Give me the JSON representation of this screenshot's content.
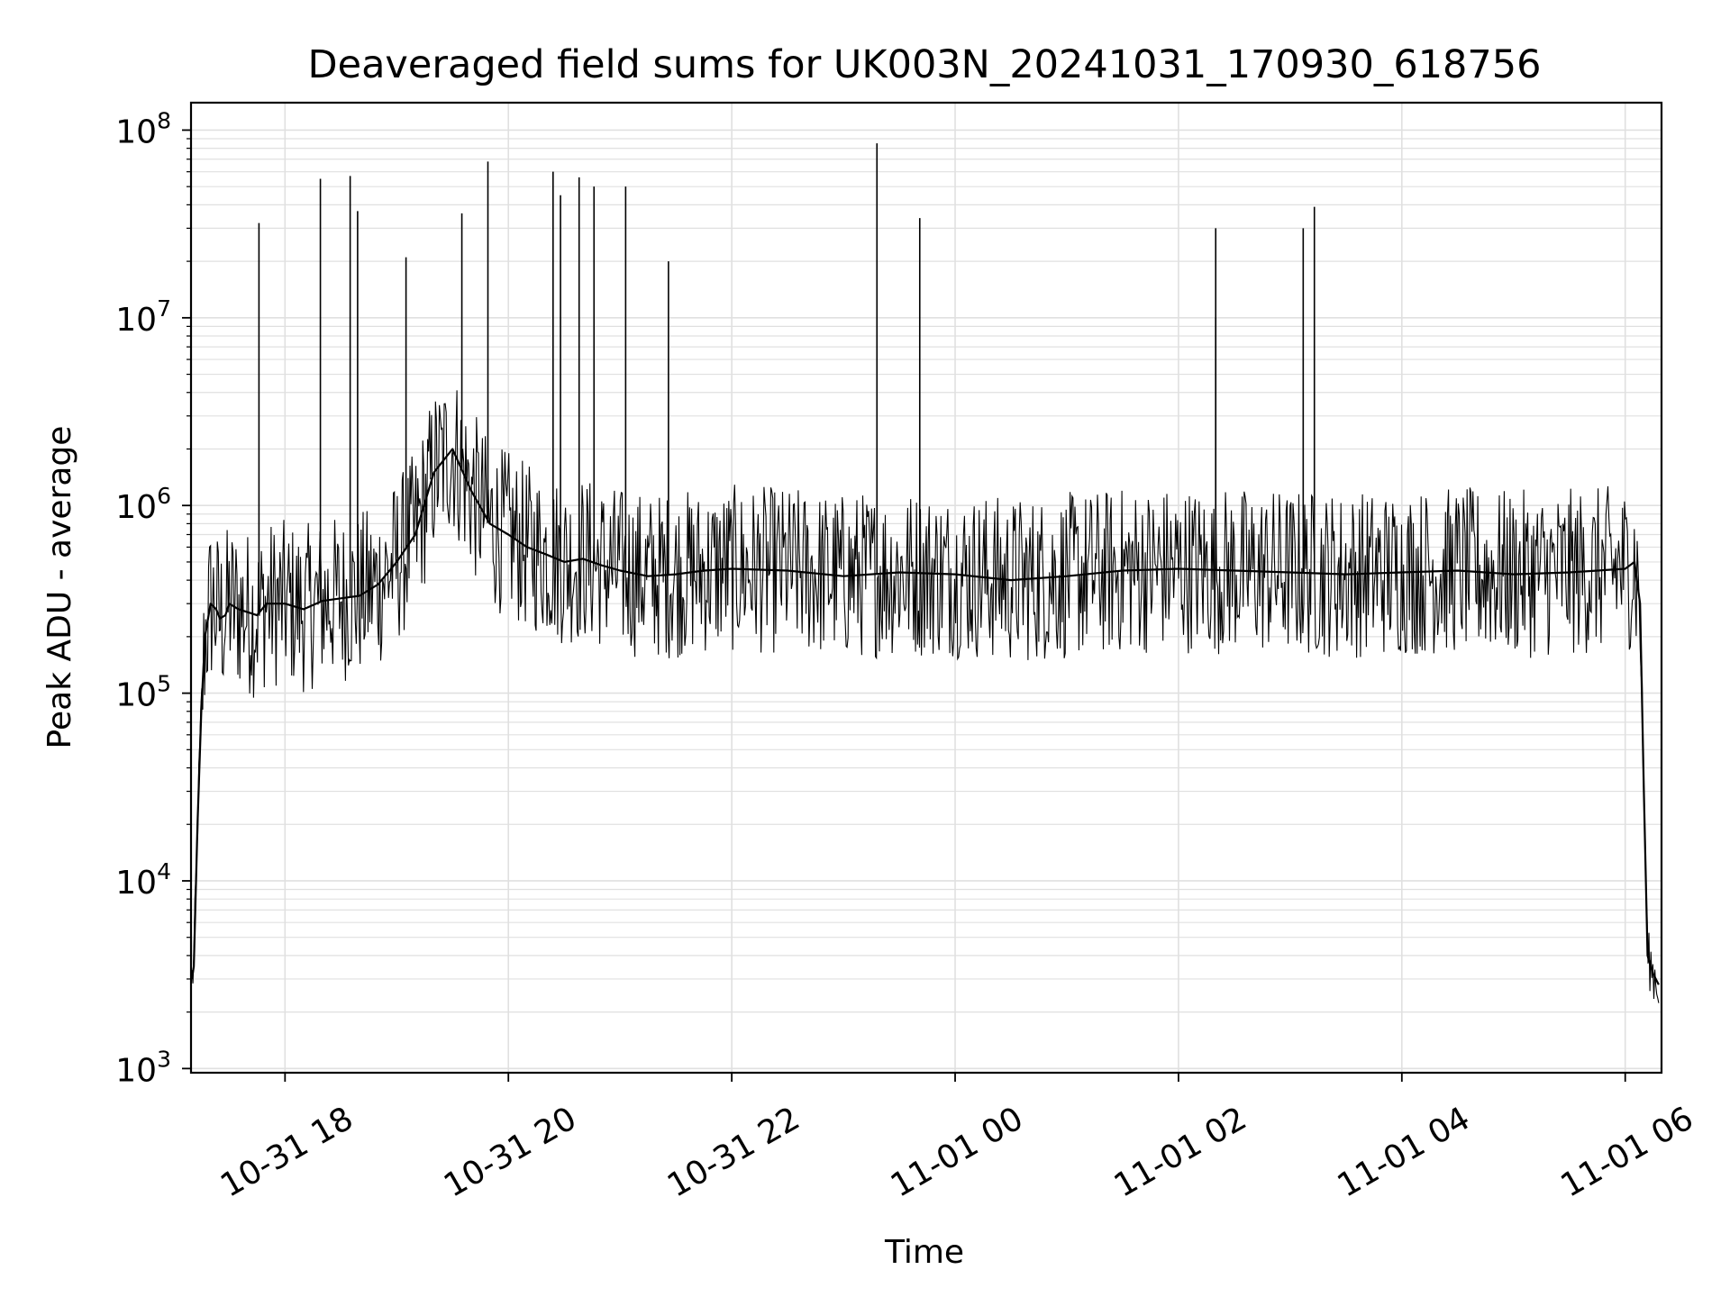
{
  "chart_data": {
    "type": "line",
    "title": "Deaveraged field sums for UK003N_20241031_170930_618756",
    "xlabel": "Time",
    "ylabel": "Peak ADU - average",
    "yscale": "log",
    "ylim": [
      950,
      140000000
    ],
    "xlim": [
      "2024-10-31 17:09:30",
      "2024-11-01 06:19:30"
    ],
    "grid": true,
    "line_color": "#000000",
    "grid_color": "#e0e0e0",
    "x_ticks": [
      {
        "value": "2024-10-31 18:00",
        "label": "10-31 18"
      },
      {
        "value": "2024-10-31 20:00",
        "label": "10-31 20"
      },
      {
        "value": "2024-10-31 22:00",
        "label": "10-31 22"
      },
      {
        "value": "2024-11-01 00:00",
        "label": "11-01 00"
      },
      {
        "value": "2024-11-01 02:00",
        "label": "11-01 02"
      },
      {
        "value": "2024-11-01 04:00",
        "label": "11-01 04"
      },
      {
        "value": "2024-11-01 06:00",
        "label": "11-01 06"
      }
    ],
    "y_ticks": [
      {
        "value": 1000,
        "base": "10",
        "exp": "3"
      },
      {
        "value": 10000,
        "base": "10",
        "exp": "4"
      },
      {
        "value": 100000,
        "base": "10",
        "exp": "5"
      },
      {
        "value": 1000000,
        "base": "10",
        "exp": "6"
      },
      {
        "value": 10000000,
        "base": "10",
        "exp": "7"
      },
      {
        "value": 100000000,
        "base": "10",
        "exp": "8"
      }
    ],
    "series": [
      {
        "x": [
          "2024-10-31 17:10",
          "2024-10-31 17:11",
          "2024-10-31 17:13",
          "2024-10-31 17:15",
          "2024-10-31 17:17",
          "2024-10-31 17:20",
          "2024-10-31 17:23",
          "2024-10-31 17:25",
          "2024-10-31 17:28",
          "2024-10-31 17:30",
          "2024-10-31 17:35",
          "2024-10-31 17:40",
          "2024-10-31 17:45",
          "2024-10-31 17:50",
          "2024-10-31 18:00",
          "2024-10-31 18:10",
          "2024-10-31 18:20",
          "2024-10-31 18:30",
          "2024-10-31 18:40",
          "2024-10-31 18:50",
          "2024-10-31 19:00",
          "2024-10-31 19:10",
          "2024-10-31 19:20",
          "2024-10-31 19:30",
          "2024-10-31 19:40",
          "2024-10-31 19:50",
          "2024-10-31 20:00",
          "2024-10-31 20:10",
          "2024-10-31 20:20",
          "2024-10-31 20:30",
          "2024-10-31 20:40",
          "2024-10-31 20:50",
          "2024-10-31 21:00",
          "2024-10-31 21:15",
          "2024-10-31 21:30",
          "2024-10-31 21:45",
          "2024-10-31 22:00",
          "2024-10-31 22:30",
          "2024-10-31 23:00",
          "2024-10-31 23:30",
          "2024-11-01 00:00",
          "2024-11-01 00:30",
          "2024-11-01 01:00",
          "2024-11-01 01:30",
          "2024-11-01 02:00",
          "2024-11-01 02:30",
          "2024-11-01 03:00",
          "2024-11-01 03:30",
          "2024-11-01 04:00",
          "2024-11-01 04:30",
          "2024-11-01 05:00",
          "2024-11-01 05:30",
          "2024-11-01 06:00",
          "2024-11-01 06:05",
          "2024-11-01 06:08",
          "2024-11-01 06:10",
          "2024-11-01 06:12",
          "2024-11-01 06:15",
          "2024-11-01 06:18"
        ],
        "y": [
          3000,
          3500,
          20000,
          80000,
          200000,
          300000,
          280000,
          250000,
          260000,
          300000,
          280000,
          270000,
          260000,
          300000,
          300000,
          280000,
          310000,
          320000,
          330000,
          380000,
          500000,
          700000,
          1500000,
          2000000,
          1200000,
          800000,
          700000,
          600000,
          550000,
          500000,
          520000,
          480000,
          450000,
          420000,
          430000,
          450000,
          460000,
          450000,
          420000,
          440000,
          430000,
          400000,
          420000,
          450000,
          460000,
          450000,
          440000,
          430000,
          440000,
          450000,
          430000,
          440000,
          460000,
          500000,
          300000,
          30000,
          4000,
          3200,
          2800
        ],
        "spikes": [
          {
            "x": "2024-10-31 17:46",
            "y": 32000000
          },
          {
            "x": "2024-10-31 18:19",
            "y": 55000000
          },
          {
            "x": "2024-10-31 18:35",
            "y": 57000000
          },
          {
            "x": "2024-10-31 18:39",
            "y": 37000000
          },
          {
            "x": "2024-10-31 19:05",
            "y": 21000000
          },
          {
            "x": "2024-10-31 19:35",
            "y": 36000000
          },
          {
            "x": "2024-10-31 19:49",
            "y": 68000000
          },
          {
            "x": "2024-10-31 20:24",
            "y": 60000000
          },
          {
            "x": "2024-10-31 20:28",
            "y": 45000000
          },
          {
            "x": "2024-10-31 20:38",
            "y": 56000000
          },
          {
            "x": "2024-10-31 20:46",
            "y": 50000000
          },
          {
            "x": "2024-10-31 21:03",
            "y": 50000000
          },
          {
            "x": "2024-10-31 21:26",
            "y": 20000000
          },
          {
            "x": "2024-10-31 23:18",
            "y": 85000000
          },
          {
            "x": "2024-10-31 23:41",
            "y": 34000000
          },
          {
            "x": "2024-11-01 02:20",
            "y": 30000000
          },
          {
            "x": "2024-11-01 02:20",
            "y": 10000000
          },
          {
            "x": "2024-11-01 03:07",
            "y": 30000000
          },
          {
            "x": "2024-11-01 03:13",
            "y": 39000000
          }
        ]
      }
    ]
  }
}
